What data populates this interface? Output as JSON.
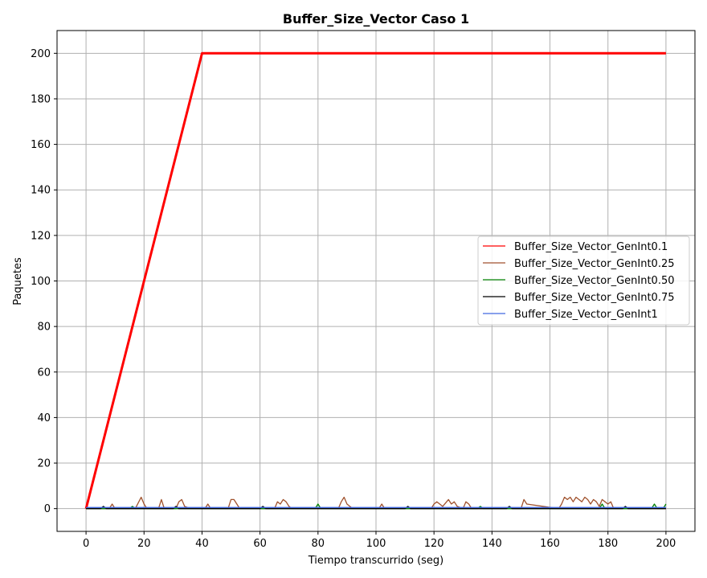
{
  "chart_data": {
    "type": "line",
    "title": "Buffer_Size_Vector Caso 1",
    "xlabel": "Tiempo transcurrido (seg)",
    "ylabel": "Paquetes",
    "xlim": [
      -10,
      210
    ],
    "ylim": [
      -10,
      210
    ],
    "xticks": [
      0,
      20,
      40,
      60,
      80,
      100,
      120,
      140,
      160,
      180,
      200
    ],
    "yticks": [
      0,
      20,
      40,
      60,
      80,
      100,
      120,
      140,
      160,
      180,
      200
    ],
    "grid": true,
    "legend_position": "center-right",
    "series": [
      {
        "name": "Buffer_Size_Vector_GenInt0.1",
        "color": "#ff0000",
        "x": [
          0,
          40,
          200
        ],
        "y": [
          0,
          200,
          200
        ]
      },
      {
        "name": "Buffer_Size_Vector_GenInt0.25",
        "color": "#a0522d",
        "x": [
          0,
          8,
          9,
          10,
          17,
          19,
          20,
          21,
          25,
          26,
          27,
          31,
          32,
          33,
          34,
          36,
          41,
          42,
          43,
          49,
          50,
          51,
          52,
          53,
          65,
          66,
          67,
          68,
          69,
          70,
          71,
          74,
          76,
          87,
          88,
          89,
          90,
          92,
          101,
          102,
          103,
          119,
          120,
          121,
          123,
          125,
          126,
          127,
          128,
          130,
          131,
          132,
          133,
          150,
          151,
          152,
          163,
          164,
          165,
          166,
          167,
          168,
          169,
          170,
          171,
          172,
          173,
          174,
          175,
          176,
          177,
          178,
          179,
          180,
          181,
          182,
          200
        ],
        "y": [
          0,
          0,
          2,
          0,
          0,
          5,
          2,
          0,
          0,
          4,
          0,
          0,
          3,
          4,
          1,
          0,
          0,
          2,
          0,
          0,
          4,
          4,
          2,
          0,
          0,
          3,
          2,
          4,
          3,
          1,
          0,
          0,
          0,
          0,
          3,
          5,
          2,
          0,
          0,
          2,
          0,
          0,
          2,
          3,
          1,
          4,
          2,
          3,
          1,
          0,
          3,
          2,
          0,
          0,
          4,
          2,
          0,
          2,
          5,
          4,
          5,
          3,
          5,
          4,
          3,
          5,
          4,
          2,
          4,
          3,
          1,
          4,
          3,
          2,
          3,
          0,
          0
        ]
      },
      {
        "name": "Buffer_Size_Vector_GenInt0.50",
        "color": "#008000",
        "x": [
          0,
          15,
          16,
          17,
          79,
          80,
          81,
          135,
          136,
          137,
          177,
          178,
          179,
          195,
          196,
          197,
          199,
          200
        ],
        "y": [
          0,
          0,
          1,
          0,
          0,
          2,
          0,
          0,
          1,
          0,
          0,
          2,
          0,
          0,
          2,
          0,
          0,
          2
        ]
      },
      {
        "name": "Buffer_Size_Vector_GenInt0.75",
        "color": "#000000",
        "x": [
          0,
          5,
          6,
          7,
          30,
          31,
          32,
          60,
          61,
          62,
          110,
          111,
          112,
          145,
          146,
          147,
          185,
          186,
          187,
          200
        ],
        "y": [
          0,
          0,
          1,
          0,
          0,
          1,
          0,
          0,
          1,
          0,
          0,
          1,
          0,
          0,
          1,
          0,
          0,
          1,
          0,
          0
        ]
      },
      {
        "name": "Buffer_Size_Vector_GenInt1",
        "color": "#4169e1",
        "x": [
          0,
          200
        ],
        "y": [
          0.5,
          0.5
        ]
      }
    ]
  }
}
